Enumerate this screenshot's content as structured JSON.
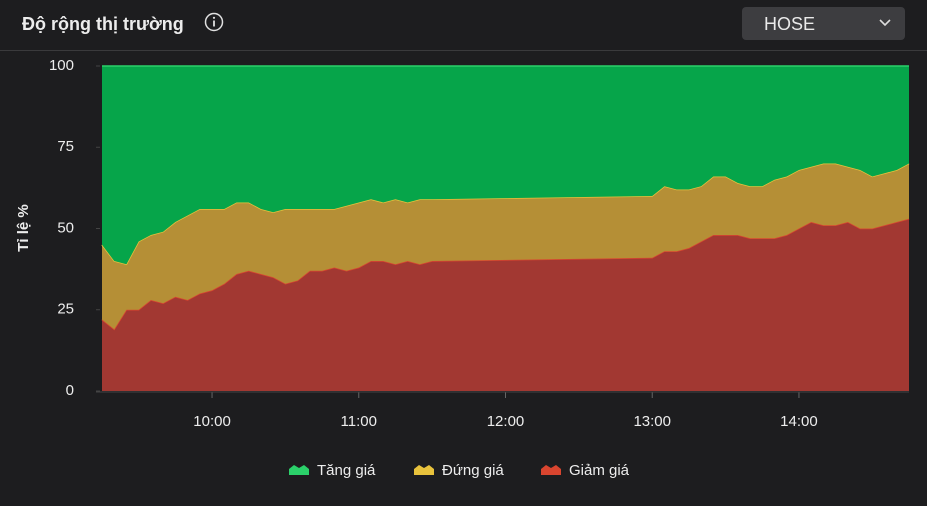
{
  "header": {
    "title": "Độ rộng thị trường",
    "exchange": "HOSE"
  },
  "chart_data": {
    "type": "stacked-area",
    "y_label": "Tỉ lệ %",
    "x": [
      "09:15",
      "09:20",
      "09:25",
      "09:30",
      "09:35",
      "09:40",
      "09:45",
      "09:50",
      "09:55",
      "10:00",
      "10:05",
      "10:10",
      "10:15",
      "10:20",
      "10:25",
      "10:30",
      "10:35",
      "10:40",
      "10:45",
      "10:50",
      "10:55",
      "11:00",
      "11:05",
      "11:10",
      "11:15",
      "11:20",
      "11:25",
      "11:30",
      "13:00",
      "13:05",
      "13:10",
      "13:15",
      "13:20",
      "13:25",
      "13:30",
      "13:35",
      "13:40",
      "13:45",
      "13:50",
      "13:55",
      "14:00",
      "14:05",
      "14:10",
      "14:15",
      "14:20",
      "14:25",
      "14:30",
      "14:35",
      "14:40",
      "14:45"
    ],
    "xlim": [
      "09:15",
      "14:45"
    ],
    "xticks": [
      "10:00",
      "11:00",
      "12:00",
      "13:00",
      "14:00"
    ],
    "ylim": [
      0,
      100
    ],
    "yticks": [
      0,
      25,
      50,
      75,
      100
    ],
    "series": [
      {
        "name": "Tăng giá",
        "color": "#06a54a",
        "line_color": "#2bd16a",
        "values": [
          55,
          60,
          61,
          54,
          52,
          51,
          48,
          46,
          44,
          44,
          44,
          42,
          42,
          44,
          45,
          44,
          44,
          44,
          44,
          44,
          43,
          42,
          41,
          42,
          41,
          42,
          41,
          41,
          40,
          37,
          38,
          38,
          37,
          34,
          34,
          36,
          37,
          37,
          35,
          34,
          32,
          31,
          30,
          30,
          31,
          32,
          34,
          33,
          32,
          30
        ]
      },
      {
        "name": "Đứng giá",
        "color": "#b58f36",
        "line_color": "#e8c23c",
        "values": [
          23,
          21,
          14,
          21,
          20,
          22,
          23,
          26,
          26,
          25,
          23,
          22,
          21,
          20,
          20,
          23,
          22,
          19,
          19,
          18,
          20,
          20,
          19,
          18,
          20,
          18,
          20,
          19,
          19,
          20,
          19,
          18,
          17,
          18,
          18,
          16,
          16,
          16,
          18,
          18,
          18,
          17,
          19,
          19,
          17,
          18,
          16,
          16,
          16,
          17
        ]
      },
      {
        "name": "Giảm giá",
        "color": "#a23832",
        "line_color": "#d9452f",
        "values": [
          22,
          19,
          25,
          25,
          28,
          27,
          29,
          28,
          30,
          31,
          33,
          36,
          37,
          36,
          35,
          33,
          34,
          37,
          37,
          38,
          37,
          38,
          40,
          40,
          39,
          40,
          39,
          40,
          41,
          43,
          43,
          44,
          46,
          48,
          48,
          48,
          47,
          47,
          47,
          48,
          50,
          52,
          51,
          51,
          52,
          50,
          50,
          51,
          52,
          53
        ]
      }
    ]
  }
}
